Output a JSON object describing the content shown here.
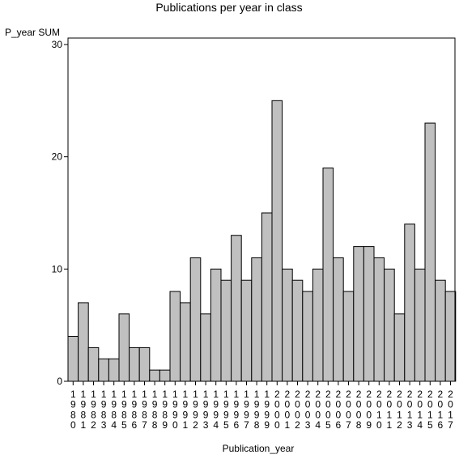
{
  "chart_data": {
    "type": "bar",
    "title": "Publications per year in class",
    "xlabel": "Publication_year",
    "ylabel": "P_year SUM",
    "ylim": [
      0,
      30
    ],
    "yticks": [
      0,
      10,
      20,
      30
    ],
    "grid": false,
    "categories": [
      "1980",
      "1981",
      "1982",
      "1983",
      "1984",
      "1985",
      "1986",
      "1987",
      "1988",
      "1989",
      "1990",
      "1991",
      "1992",
      "1993",
      "1994",
      "1995",
      "1996",
      "1997",
      "1998",
      "1999",
      "2000",
      "2001",
      "2002",
      "2003",
      "2004",
      "2005",
      "2006",
      "2007",
      "2008",
      "2009",
      "2010",
      "2011",
      "2012",
      "2013",
      "2014",
      "2015",
      "2016",
      "2017"
    ],
    "values": [
      4,
      7,
      3,
      2,
      2,
      6,
      3,
      3,
      1,
      1,
      8,
      7,
      11,
      6,
      10,
      9,
      13,
      9,
      11,
      15,
      25,
      10,
      9,
      8,
      10,
      19,
      11,
      8,
      12,
      12,
      11,
      10,
      6,
      14,
      10,
      23,
      9,
      8
    ],
    "colors": {
      "bar_fill": "#c0c0c0",
      "bar_stroke": "#000000"
    }
  }
}
